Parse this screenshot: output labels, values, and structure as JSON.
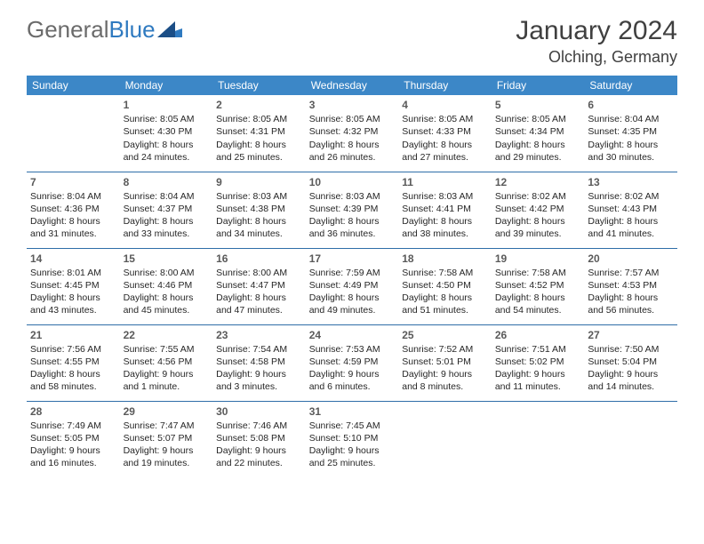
{
  "logo": {
    "text_gray": "General",
    "text_blue": "Blue"
  },
  "header": {
    "month_title": "January 2024",
    "location": "Olching, Germany"
  },
  "weekdays": [
    "Sunday",
    "Monday",
    "Tuesday",
    "Wednesday",
    "Thursday",
    "Friday",
    "Saturday"
  ],
  "colors": {
    "header_bg": "#3c87c7",
    "header_text": "#ffffff",
    "row_divider": "#2f6ea8",
    "logo_gray": "#6b6b6b",
    "logo_blue": "#2f7ac0",
    "text": "#262626",
    "daynum": "#5a5a5a"
  },
  "type": "calendar-table",
  "weeks": [
    [
      null,
      {
        "n": "1",
        "sunrise": "8:05 AM",
        "sunset": "4:30 PM",
        "daylight": "8 hours and 24 minutes."
      },
      {
        "n": "2",
        "sunrise": "8:05 AM",
        "sunset": "4:31 PM",
        "daylight": "8 hours and 25 minutes."
      },
      {
        "n": "3",
        "sunrise": "8:05 AM",
        "sunset": "4:32 PM",
        "daylight": "8 hours and 26 minutes."
      },
      {
        "n": "4",
        "sunrise": "8:05 AM",
        "sunset": "4:33 PM",
        "daylight": "8 hours and 27 minutes."
      },
      {
        "n": "5",
        "sunrise": "8:05 AM",
        "sunset": "4:34 PM",
        "daylight": "8 hours and 29 minutes."
      },
      {
        "n": "6",
        "sunrise": "8:04 AM",
        "sunset": "4:35 PM",
        "daylight": "8 hours and 30 minutes."
      }
    ],
    [
      {
        "n": "7",
        "sunrise": "8:04 AM",
        "sunset": "4:36 PM",
        "daylight": "8 hours and 31 minutes."
      },
      {
        "n": "8",
        "sunrise": "8:04 AM",
        "sunset": "4:37 PM",
        "daylight": "8 hours and 33 minutes."
      },
      {
        "n": "9",
        "sunrise": "8:03 AM",
        "sunset": "4:38 PM",
        "daylight": "8 hours and 34 minutes."
      },
      {
        "n": "10",
        "sunrise": "8:03 AM",
        "sunset": "4:39 PM",
        "daylight": "8 hours and 36 minutes."
      },
      {
        "n": "11",
        "sunrise": "8:03 AM",
        "sunset": "4:41 PM",
        "daylight": "8 hours and 38 minutes."
      },
      {
        "n": "12",
        "sunrise": "8:02 AM",
        "sunset": "4:42 PM",
        "daylight": "8 hours and 39 minutes."
      },
      {
        "n": "13",
        "sunrise": "8:02 AM",
        "sunset": "4:43 PM",
        "daylight": "8 hours and 41 minutes."
      }
    ],
    [
      {
        "n": "14",
        "sunrise": "8:01 AM",
        "sunset": "4:45 PM",
        "daylight": "8 hours and 43 minutes."
      },
      {
        "n": "15",
        "sunrise": "8:00 AM",
        "sunset": "4:46 PM",
        "daylight": "8 hours and 45 minutes."
      },
      {
        "n": "16",
        "sunrise": "8:00 AM",
        "sunset": "4:47 PM",
        "daylight": "8 hours and 47 minutes."
      },
      {
        "n": "17",
        "sunrise": "7:59 AM",
        "sunset": "4:49 PM",
        "daylight": "8 hours and 49 minutes."
      },
      {
        "n": "18",
        "sunrise": "7:58 AM",
        "sunset": "4:50 PM",
        "daylight": "8 hours and 51 minutes."
      },
      {
        "n": "19",
        "sunrise": "7:58 AM",
        "sunset": "4:52 PM",
        "daylight": "8 hours and 54 minutes."
      },
      {
        "n": "20",
        "sunrise": "7:57 AM",
        "sunset": "4:53 PM",
        "daylight": "8 hours and 56 minutes."
      }
    ],
    [
      {
        "n": "21",
        "sunrise": "7:56 AM",
        "sunset": "4:55 PM",
        "daylight": "8 hours and 58 minutes."
      },
      {
        "n": "22",
        "sunrise": "7:55 AM",
        "sunset": "4:56 PM",
        "daylight": "9 hours and 1 minute."
      },
      {
        "n": "23",
        "sunrise": "7:54 AM",
        "sunset": "4:58 PM",
        "daylight": "9 hours and 3 minutes."
      },
      {
        "n": "24",
        "sunrise": "7:53 AM",
        "sunset": "4:59 PM",
        "daylight": "9 hours and 6 minutes."
      },
      {
        "n": "25",
        "sunrise": "7:52 AM",
        "sunset": "5:01 PM",
        "daylight": "9 hours and 8 minutes."
      },
      {
        "n": "26",
        "sunrise": "7:51 AM",
        "sunset": "5:02 PM",
        "daylight": "9 hours and 11 minutes."
      },
      {
        "n": "27",
        "sunrise": "7:50 AM",
        "sunset": "5:04 PM",
        "daylight": "9 hours and 14 minutes."
      }
    ],
    [
      {
        "n": "28",
        "sunrise": "7:49 AM",
        "sunset": "5:05 PM",
        "daylight": "9 hours and 16 minutes."
      },
      {
        "n": "29",
        "sunrise": "7:47 AM",
        "sunset": "5:07 PM",
        "daylight": "9 hours and 19 minutes."
      },
      {
        "n": "30",
        "sunrise": "7:46 AM",
        "sunset": "5:08 PM",
        "daylight": "9 hours and 22 minutes."
      },
      {
        "n": "31",
        "sunrise": "7:45 AM",
        "sunset": "5:10 PM",
        "daylight": "9 hours and 25 minutes."
      },
      null,
      null,
      null
    ]
  ],
  "labels": {
    "sunrise": "Sunrise:",
    "sunset": "Sunset:",
    "daylight": "Daylight:"
  }
}
